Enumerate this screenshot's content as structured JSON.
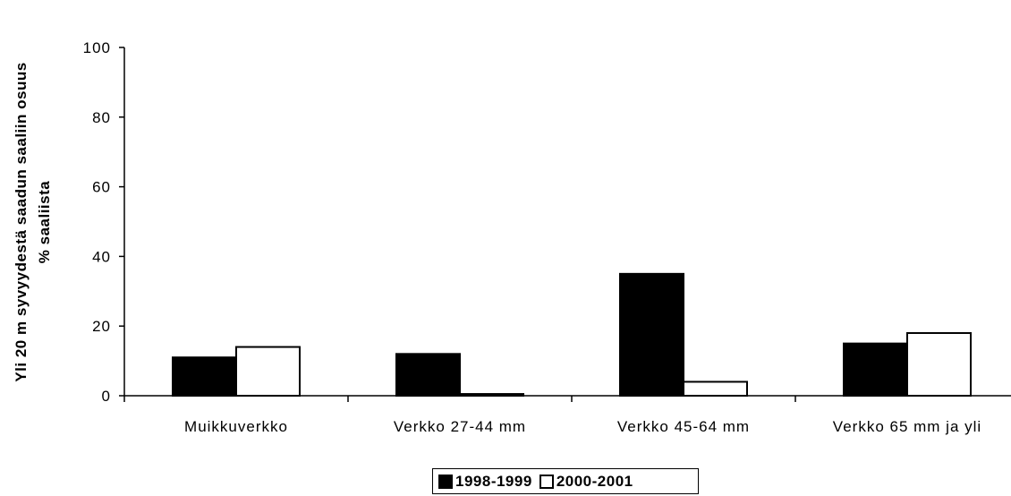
{
  "chart_data": {
    "type": "bar",
    "title": "",
    "xlabel": "",
    "ylabel_lines": [
      "Yli 20 m syvyydestä saadun saaliin osuus",
      "% saaliista"
    ],
    "categories": [
      "Muikkuverkko",
      "Verkko 27-44 mm",
      "Verkko 45-64 mm",
      "Verkko 65 mm ja yli"
    ],
    "series": [
      {
        "name": "1998-1999",
        "values": [
          11,
          12,
          35,
          15
        ],
        "color": "#000000"
      },
      {
        "name": "2000-2001",
        "values": [
          14,
          0.5,
          4,
          18
        ],
        "color": "#ffffff"
      }
    ],
    "ylim": [
      0,
      100
    ],
    "yticks": [
      "0",
      "20",
      "40",
      "60",
      "80",
      "100"
    ],
    "grid": false,
    "legend_position": "bottom"
  }
}
